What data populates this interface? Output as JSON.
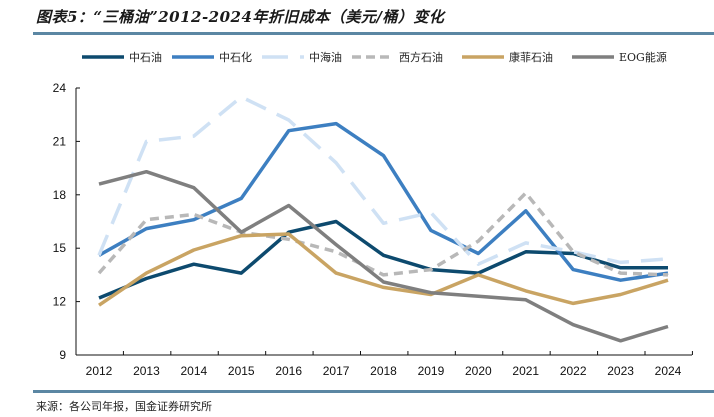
{
  "header": {
    "title": "图表5：“三桶油”2012-2024年折旧成本（美元/桶）变化"
  },
  "footer": {
    "source": "来源：各公司年报，国金证券研究所"
  },
  "colors": {
    "rule": "#5b87a3"
  },
  "chart_data": {
    "type": "line",
    "title": "“三桶油”2012-2024年折旧成本（美元/桶）变化",
    "xlabel": "",
    "ylabel": "",
    "x": [
      "2012",
      "2013",
      "2014",
      "2015",
      "2016",
      "2017",
      "2018",
      "2019",
      "2020",
      "2021",
      "2022",
      "2023",
      "2024"
    ],
    "ylim": [
      9,
      24
    ],
    "yticks": [
      9,
      12,
      15,
      18,
      21,
      24
    ],
    "grid": false,
    "legend_position": "top",
    "series": [
      {
        "name": "中石油",
        "color": "#0d4a6e",
        "style": "solid",
        "values": [
          12.2,
          13.3,
          14.1,
          13.6,
          15.9,
          16.5,
          14.6,
          13.8,
          13.6,
          14.8,
          14.7,
          13.9,
          13.9
        ]
      },
      {
        "name": "中石化",
        "color": "#3d7fc1",
        "style": "solid",
        "values": [
          14.6,
          16.1,
          16.6,
          17.8,
          21.6,
          22.0,
          20.2,
          16.0,
          14.7,
          17.1,
          13.8,
          13.2,
          13.6
        ]
      },
      {
        "name": "中海油",
        "color": "#cfe1f4",
        "style": "longdash",
        "values": [
          14.6,
          21.0,
          21.3,
          23.5,
          22.2,
          19.8,
          16.4,
          17.0,
          14.1,
          15.3,
          14.8,
          14.2,
          14.4
        ]
      },
      {
        "name": "西方石油",
        "color": "#b8b8b8",
        "style": "dash",
        "values": [
          13.6,
          16.6,
          16.9,
          15.9,
          15.5,
          14.8,
          13.5,
          13.8,
          15.4,
          18.1,
          14.8,
          13.6,
          13.5
        ]
      },
      {
        "name": "康菲石油",
        "color": "#c9a463",
        "style": "solid",
        "values": [
          11.8,
          13.6,
          14.9,
          15.7,
          15.8,
          13.6,
          12.8,
          12.4,
          13.5,
          12.6,
          11.9,
          12.4,
          13.2
        ]
      },
      {
        "name": "EOG能源",
        "color": "#7f7f7f",
        "style": "solid",
        "values": [
          18.6,
          19.3,
          18.4,
          15.9,
          17.4,
          15.2,
          13.1,
          12.5,
          12.3,
          12.1,
          10.7,
          9.8,
          10.6
        ]
      }
    ]
  }
}
